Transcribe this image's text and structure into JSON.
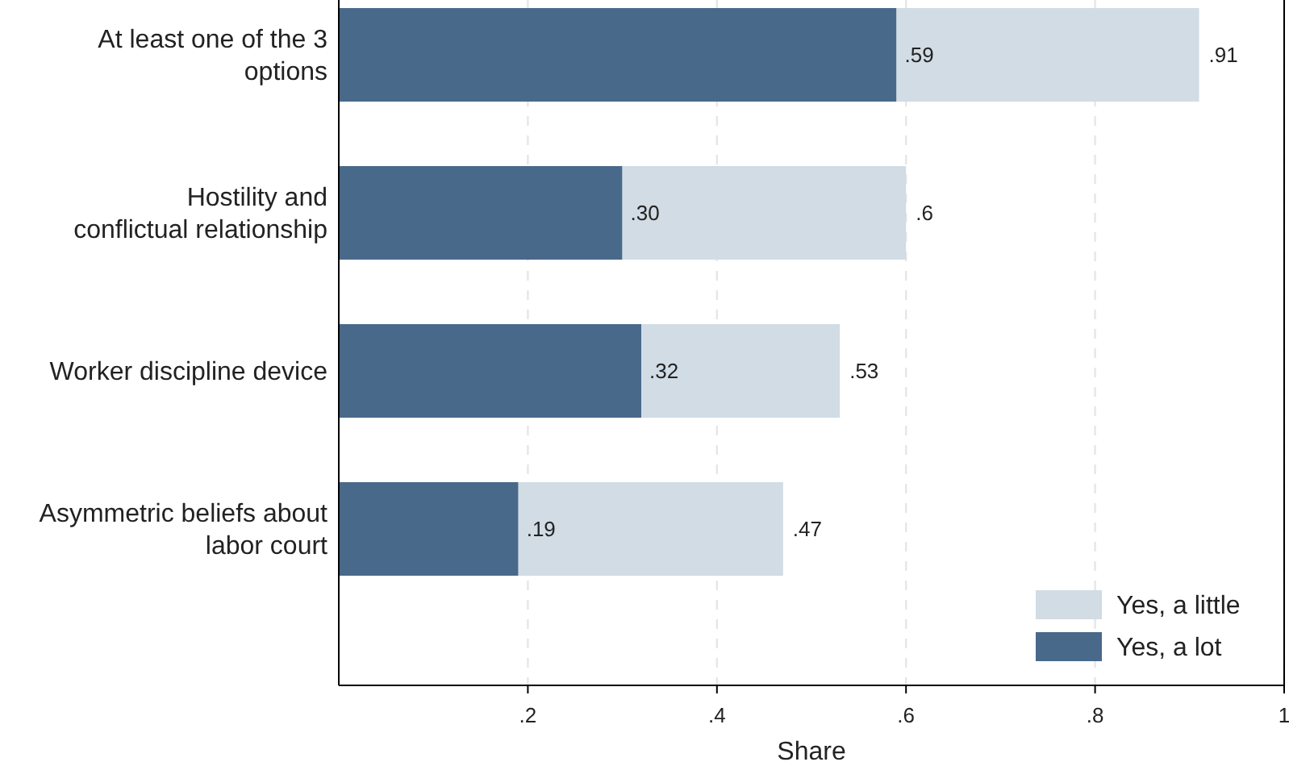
{
  "chart_data": {
    "type": "bar",
    "orientation": "horizontal",
    "stacked": true,
    "xlabel": "Share",
    "categories": [
      "At least one of the 3 options",
      "Hostility and conflictual relationship",
      "Worker discipline device",
      "Asymmetric beliefs about labor court"
    ],
    "series": [
      {
        "name": "Yes, a lot",
        "color": "#48698a",
        "values": [
          0.59,
          0.3,
          0.32,
          0.19
        ],
        "value_labels": [
          ".59",
          ".30",
          ".32",
          ".19"
        ]
      },
      {
        "name": "Yes, a little",
        "color": "#d1dce5",
        "values": [
          0.32,
          0.3,
          0.21,
          0.28
        ]
      }
    ],
    "totals": [
      ".91",
      ".6",
      ".53",
      ".47"
    ],
    "xlim": [
      0,
      1
    ],
    "xticks": [
      {
        "value": 0.2,
        "label": ".2"
      },
      {
        "value": 0.4,
        "label": ".4"
      },
      {
        "value": 0.6,
        "label": ".6"
      },
      {
        "value": 0.8,
        "label": ".8"
      },
      1
    ],
    "grid": "x",
    "legend": "bottom right"
  }
}
